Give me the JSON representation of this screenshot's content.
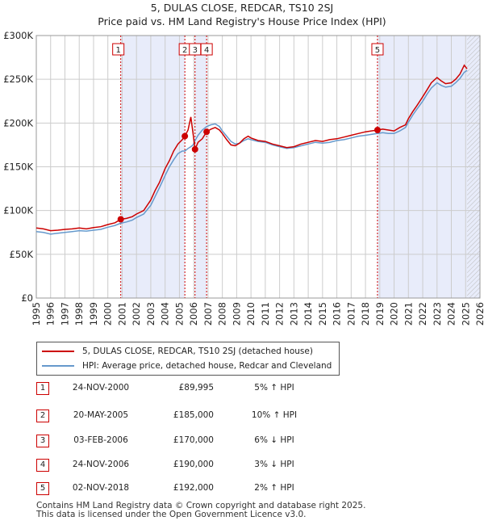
{
  "colors": {
    "price_line": "#cc0000",
    "hpi_line": "#6699cc",
    "band": "#e8ecfa",
    "grid": "#cccccc",
    "marker_dash": "#cc0000"
  },
  "titles": {
    "line1": "5, DULAS CLOSE, REDCAR, TS10 2SJ",
    "line2": "Price paid vs. HM Land Registry's House Price Index (HPI)"
  },
  "chart_data": {
    "type": "line",
    "title": "Price paid vs. HM Land Registry's House Price Index (HPI)",
    "xlabel": "",
    "ylabel": "",
    "xlim": [
      1995,
      2026
    ],
    "ylim": [
      0,
      300000
    ],
    "y_ticks": [
      0,
      50000,
      100000,
      150000,
      200000,
      250000,
      300000
    ],
    "y_tick_labels": [
      "£0",
      "£50K",
      "£100K",
      "£150K",
      "£200K",
      "£250K",
      "£300K"
    ],
    "x_ticks": [
      1995,
      1996,
      1997,
      1998,
      1999,
      2000,
      2001,
      2002,
      2003,
      2004,
      2005,
      2006,
      2007,
      2008,
      2009,
      2010,
      2011,
      2012,
      2013,
      2014,
      2015,
      2016,
      2017,
      2018,
      2019,
      2020,
      2021,
      2022,
      2023,
      2024,
      2025,
      2026
    ],
    "x_tick_labels": [
      "1995",
      "1996",
      "1997",
      "1998",
      "1999",
      "2000",
      "2001",
      "2002",
      "2003",
      "2004",
      "2005",
      "2006",
      "2007",
      "2008",
      "2009",
      "2010",
      "2011",
      "2012",
      "2013",
      "2014",
      "2015",
      "2016",
      "2017",
      "2018",
      "2019",
      "2020",
      "2021",
      "2022",
      "2023",
      "2024",
      "2025",
      "2026"
    ],
    "grid": true,
    "forecast_start": 2025.1,
    "series": [
      {
        "name": "5, DULAS CLOSE, REDCAR, TS10 2SJ (detached house)",
        "x": [
          1995.0,
          1995.5,
          1996.0,
          1996.5,
          1997.0,
          1997.5,
          1998.0,
          1998.5,
          1999.0,
          1999.5,
          2000.0,
          2000.5,
          2000.9,
          2001.3,
          2001.7,
          2002.0,
          2002.5,
          2003.0,
          2003.3,
          2003.6,
          2004.0,
          2004.3,
          2004.6,
          2004.9,
          2005.2,
          2005.38,
          2005.6,
          2005.8,
          2005.95,
          2006.09,
          2006.3,
          2006.6,
          2006.9,
          2007.2,
          2007.5,
          2007.8,
          2008.0,
          2008.3,
          2008.6,
          2008.9,
          2009.2,
          2009.5,
          2009.8,
          2010.0,
          2010.5,
          2011.0,
          2011.5,
          2012.0,
          2012.5,
          2013.0,
          2013.5,
          2014.0,
          2014.5,
          2015.0,
          2015.5,
          2016.0,
          2016.5,
          2017.0,
          2017.5,
          2018.0,
          2018.4,
          2018.84,
          2019.2,
          2019.6,
          2020.0,
          2020.4,
          2020.8,
          2021.0,
          2021.3,
          2021.6,
          2022.0,
          2022.3,
          2022.6,
          2023.0,
          2023.3,
          2023.6,
          2024.0,
          2024.3,
          2024.6,
          2024.9,
          2025.1
        ],
        "values": [
          80000,
          79000,
          77000,
          77500,
          78500,
          79000,
          80000,
          79000,
          80500,
          81500,
          84000,
          86000,
          89995,
          91000,
          93000,
          96000,
          100000,
          112000,
          123000,
          132000,
          148000,
          157000,
          168000,
          176000,
          181000,
          185000,
          192000,
          207000,
          188000,
          170000,
          178000,
          182000,
          190000,
          193000,
          195000,
          192000,
          188000,
          181000,
          175000,
          174000,
          177000,
          182000,
          185000,
          183000,
          180000,
          179000,
          176000,
          174000,
          172000,
          173000,
          176000,
          178000,
          180000,
          179000,
          181000,
          182000,
          184000,
          186000,
          188000,
          190000,
          191000,
          192000,
          193000,
          192000,
          191000,
          195000,
          198000,
          205000,
          213000,
          220000,
          230000,
          238000,
          246000,
          252000,
          248000,
          245000,
          246000,
          250000,
          256000,
          266000,
          262000
        ]
      },
      {
        "name": "HPI: Average price, detached house, Redcar and Cleveland",
        "x": [
          1995.0,
          1995.5,
          1996.0,
          1996.5,
          1997.0,
          1997.5,
          1998.0,
          1998.5,
          1999.0,
          1999.5,
          2000.0,
          2000.5,
          2000.9,
          2001.3,
          2001.7,
          2002.0,
          2002.5,
          2003.0,
          2003.3,
          2003.6,
          2004.0,
          2004.3,
          2004.6,
          2004.9,
          2005.2,
          2005.38,
          2005.6,
          2005.8,
          2005.95,
          2006.09,
          2006.3,
          2006.6,
          2006.9,
          2007.2,
          2007.5,
          2007.8,
          2008.0,
          2008.3,
          2008.6,
          2008.9,
          2009.2,
          2009.5,
          2009.8,
          2010.0,
          2010.5,
          2011.0,
          2011.5,
          2012.0,
          2012.5,
          2013.0,
          2013.5,
          2014.0,
          2014.5,
          2015.0,
          2015.5,
          2016.0,
          2016.5,
          2017.0,
          2017.5,
          2018.0,
          2018.4,
          2018.84,
          2019.2,
          2019.6,
          2020.0,
          2020.4,
          2020.8,
          2021.0,
          2021.3,
          2021.6,
          2022.0,
          2022.3,
          2022.6,
          2023.0,
          2023.3,
          2023.6,
          2024.0,
          2024.3,
          2024.6,
          2024.9,
          2025.1
        ],
        "values": [
          76000,
          75000,
          73000,
          74000,
          75000,
          76000,
          77000,
          76500,
          77500,
          78500,
          81000,
          83000,
          85500,
          87000,
          89000,
          92000,
          96000,
          106000,
          116000,
          126000,
          140000,
          150000,
          158000,
          165000,
          168000,
          168000,
          171000,
          173000,
          175000,
          180000,
          186000,
          192000,
          196000,
          198000,
          199000,
          196000,
          191000,
          185000,
          179000,
          176000,
          177000,
          180000,
          182000,
          181000,
          179000,
          178000,
          175000,
          173000,
          171000,
          172000,
          174000,
          176000,
          178000,
          177000,
          178000,
          180000,
          181000,
          183000,
          185000,
          186000,
          187000,
          188000,
          189000,
          188000,
          188000,
          191000,
          195000,
          201000,
          209000,
          216000,
          225000,
          233000,
          240000,
          246000,
          243000,
          241000,
          242000,
          246000,
          251000,
          258000,
          260000
        ]
      }
    ],
    "sales": [
      {
        "label": "1",
        "x": 2000.9,
        "value": 89995
      },
      {
        "label": "2",
        "x": 2005.38,
        "value": 185000
      },
      {
        "label": "3",
        "x": 2006.09,
        "value": 170000
      },
      {
        "label": "4",
        "x": 2006.9,
        "value": 190000
      },
      {
        "label": "5",
        "x": 2018.84,
        "value": 192000
      }
    ],
    "shaded_bands": [
      [
        2000.9,
        2005.38
      ],
      [
        2006.09,
        2006.9
      ],
      [
        2018.84,
        2026
      ]
    ]
  },
  "legend": {
    "price_label": "5, DULAS CLOSE, REDCAR, TS10 2SJ (detached house)",
    "hpi_label": "HPI: Average price, detached house, Redcar and Cleveland"
  },
  "transactions": [
    {
      "num": "1",
      "date": "24-NOV-2000",
      "price": "£89,995",
      "hpi": "5% ↑ HPI"
    },
    {
      "num": "2",
      "date": "20-MAY-2005",
      "price": "£185,000",
      "hpi": "10% ↑ HPI"
    },
    {
      "num": "3",
      "date": "03-FEB-2006",
      "price": "£170,000",
      "hpi": "6% ↓ HPI"
    },
    {
      "num": "4",
      "date": "24-NOV-2006",
      "price": "£190,000",
      "hpi": "3% ↓ HPI"
    },
    {
      "num": "5",
      "date": "02-NOV-2018",
      "price": "£192,000",
      "hpi": "2% ↑ HPI"
    }
  ],
  "footer": {
    "line1": "Contains HM Land Registry data © Crown copyright and database right 2025.",
    "line2": "This data is licensed under the Open Government Licence v3.0."
  }
}
